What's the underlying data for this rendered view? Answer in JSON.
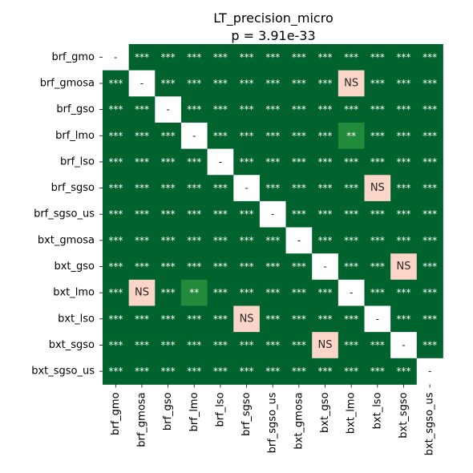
{
  "chart_data": {
    "type": "heatmap",
    "title": "LT_precision_micro",
    "subtitle": "p = 3.91e-33",
    "xlabel": "",
    "ylabel": "",
    "labels": [
      "brf_gmo",
      "brf_gmosa",
      "brf_gso",
      "brf_lmo",
      "brf_lso",
      "brf_sgso",
      "brf_sgso_us",
      "bxt_gmosa",
      "bxt_gso",
      "bxt_lmo",
      "bxt_lso",
      "bxt_sgso",
      "bxt_sgso_us"
    ],
    "cells": [
      [
        "-",
        "***",
        "***",
        "***",
        "***",
        "***",
        "***",
        "***",
        "***",
        "***",
        "***",
        "***",
        "***"
      ],
      [
        "***",
        "-",
        "***",
        "***",
        "***",
        "***",
        "***",
        "***",
        "***",
        "NS",
        "***",
        "***",
        "***"
      ],
      [
        "***",
        "***",
        "-",
        "***",
        "***",
        "***",
        "***",
        "***",
        "***",
        "***",
        "***",
        "***",
        "***"
      ],
      [
        "***",
        "***",
        "***",
        "-",
        "***",
        "***",
        "***",
        "***",
        "***",
        "**",
        "***",
        "***",
        "***"
      ],
      [
        "***",
        "***",
        "***",
        "***",
        "-",
        "***",
        "***",
        "***",
        "***",
        "***",
        "***",
        "***",
        "***"
      ],
      [
        "***",
        "***",
        "***",
        "***",
        "***",
        "-",
        "***",
        "***",
        "***",
        "***",
        "NS",
        "***",
        "***"
      ],
      [
        "***",
        "***",
        "***",
        "***",
        "***",
        "***",
        "-",
        "***",
        "***",
        "***",
        "***",
        "***",
        "***"
      ],
      [
        "***",
        "***",
        "***",
        "***",
        "***",
        "***",
        "***",
        "-",
        "***",
        "***",
        "***",
        "***",
        "***"
      ],
      [
        "***",
        "***",
        "***",
        "***",
        "***",
        "***",
        "***",
        "***",
        "-",
        "***",
        "***",
        "NS",
        "***"
      ],
      [
        "***",
        "NS",
        "***",
        "**",
        "***",
        "***",
        "***",
        "***",
        "***",
        "-",
        "***",
        "***",
        "***"
      ],
      [
        "***",
        "***",
        "***",
        "***",
        "***",
        "NS",
        "***",
        "***",
        "***",
        "***",
        "-",
        "***",
        "***"
      ],
      [
        "***",
        "***",
        "***",
        "***",
        "***",
        "***",
        "***",
        "***",
        "NS",
        "***",
        "***",
        "-",
        "***"
      ],
      [
        "***",
        "***",
        "***",
        "***",
        "***",
        "***",
        "***",
        "***",
        "***",
        "***",
        "***",
        "***",
        "-"
      ]
    ],
    "colors": {
      "***": "#00622d",
      "**": "#228b3b",
      "NS": "#fbd5c7",
      "-": "#ffffff"
    },
    "text_colors": {
      "***": "#ffffff",
      "**": "#ffffff",
      "NS": "#262626",
      "-": "#262626"
    },
    "legend": "none",
    "grid": false
  }
}
